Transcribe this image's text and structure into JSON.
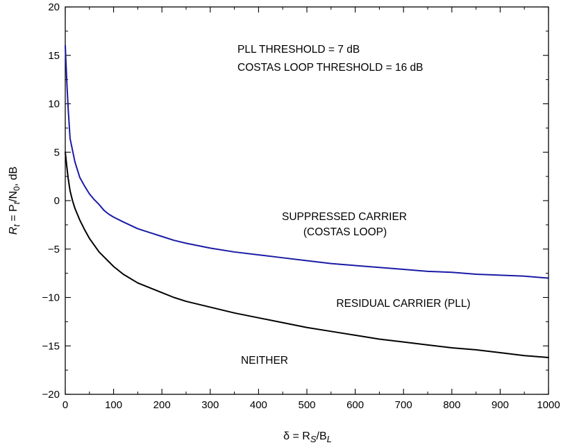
{
  "chart_data": {
    "type": "line",
    "title": "",
    "xlabel": {
      "main": "δ = R",
      "sub1": "S",
      "mid": "/B",
      "sub2": "L"
    },
    "ylabel": {
      "pre": "R",
      "sub1": "t",
      "mid": " = P",
      "sub2": "t",
      "mid2": "/N",
      "sub3": "0",
      "post": ", dB"
    },
    "xlim": [
      0,
      1000
    ],
    "ylim": [
      -20,
      20
    ],
    "xticks": [
      0,
      100,
      200,
      300,
      400,
      500,
      600,
      700,
      800,
      900,
      1000
    ],
    "yticks": [
      -20,
      -15,
      -10,
      -5,
      0,
      5,
      10,
      15,
      20
    ],
    "grid": false,
    "series": [
      {
        "color": "#1a1aa6",
        "x": [
          0,
          3,
          6,
          10,
          15,
          20,
          30,
          40,
          50,
          60,
          70,
          80,
          90,
          100,
          120,
          150,
          175,
          200,
          225,
          250,
          300,
          350,
          400,
          450,
          500,
          550,
          600,
          650,
          700,
          750,
          800,
          850,
          900,
          950,
          1000
        ],
        "values": [
          16,
          12.5,
          9.5,
          6.4,
          5.2,
          4.0,
          2.4,
          1.5,
          0.7,
          0.1,
          -0.4,
          -1.0,
          -1.4,
          -1.7,
          -2.2,
          -2.9,
          -3.3,
          -3.7,
          -4.1,
          -4.4,
          -4.9,
          -5.3,
          -5.6,
          -5.9,
          -6.2,
          -6.5,
          -6.7,
          -6.9,
          -7.1,
          -7.3,
          -7.4,
          -7.6,
          -7.7,
          -7.8,
          -8.0
        ]
      },
      {
        "color": "#000000",
        "x": [
          0,
          3,
          6,
          10,
          15,
          20,
          30,
          40,
          50,
          60,
          70,
          80,
          90,
          100,
          120,
          150,
          175,
          200,
          225,
          250,
          300,
          350,
          400,
          450,
          500,
          550,
          600,
          650,
          700,
          750,
          800,
          850,
          900,
          950,
          1000
        ],
        "values": [
          5,
          3.6,
          2.3,
          1.0,
          0,
          -0.8,
          -2.0,
          -3.0,
          -3.9,
          -4.6,
          -5.3,
          -5.8,
          -6.3,
          -6.8,
          -7.6,
          -8.5,
          -9.0,
          -9.5,
          -10.0,
          -10.4,
          -11.0,
          -11.6,
          -12.1,
          -12.6,
          -13.1,
          -13.5,
          -13.9,
          -14.3,
          -14.6,
          -14.9,
          -15.2,
          -15.4,
          -15.7,
          -16.0,
          -16.2
        ]
      }
    ],
    "annotations": {
      "pll_threshold": "PLL THRESHOLD = 7 dB",
      "costas_threshold": "COSTAS LOOP THRESHOLD = 16 dB",
      "suppressed_1": "SUPPRESSED CARRIER",
      "suppressed_2": "(COSTAS LOOP)",
      "residual": "RESIDUAL CARRIER (PLL)",
      "neither": "NEITHER"
    }
  }
}
